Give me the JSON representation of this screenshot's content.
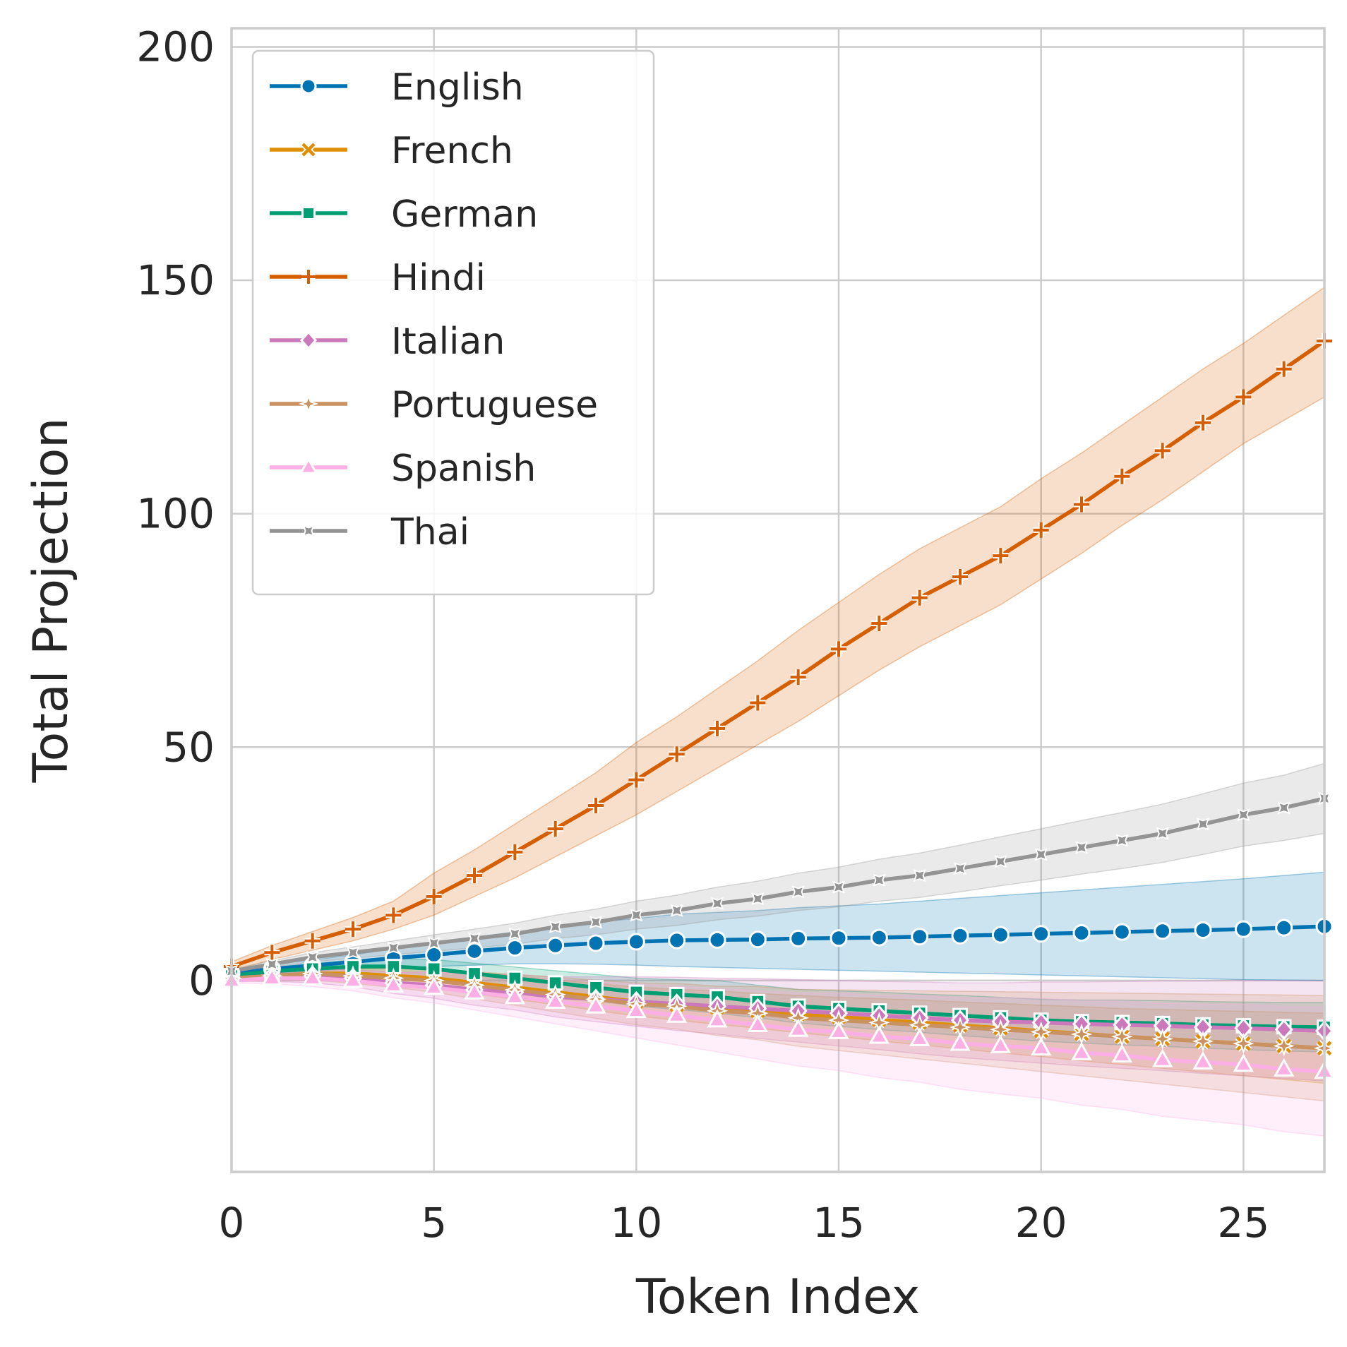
{
  "chart_data": {
    "type": "line",
    "title": "",
    "xlabel": "Token Index",
    "ylabel": "Total Projection",
    "xlim": [
      0,
      27
    ],
    "ylim": [
      -41,
      204
    ],
    "x_ticks": [
      0,
      5,
      10,
      15,
      20,
      25
    ],
    "y_ticks": [
      0,
      50,
      100,
      150,
      200
    ],
    "grid": true,
    "legend_position": "top-left",
    "band": "shaded confidence interval around each series",
    "x": [
      0,
      1,
      2,
      3,
      4,
      5,
      6,
      7,
      8,
      9,
      10,
      11,
      12,
      13,
      14,
      15,
      16,
      17,
      18,
      19,
      20,
      21,
      22,
      23,
      24,
      25,
      26,
      27
    ],
    "series": [
      {
        "name": "English",
        "color": "#0173b2",
        "marker": "circle",
        "values": [
          1.5,
          2.5,
          3.2,
          4,
          4.8,
          5.5,
          6.3,
          7,
          7.5,
          8,
          8.3,
          8.6,
          8.7,
          8.8,
          9,
          9.1,
          9.2,
          9.4,
          9.6,
          9.8,
          10,
          10.2,
          10.4,
          10.6,
          10.8,
          11,
          11.3,
          11.6
        ],
        "lower": [
          1.0,
          1.5,
          2.0,
          2.5,
          2.8,
          3.0,
          3.3,
          3.6,
          3.6,
          3.5,
          3.3,
          3.0,
          2.8,
          2.6,
          2.4,
          2.2,
          2.0,
          1.8,
          1.6,
          1.4,
          1.2,
          1.0,
          0.8,
          0.6,
          0.4,
          0.2,
          0.1,
          0.0
        ],
        "upper": [
          2.0,
          3.5,
          4.4,
          5.5,
          6.8,
          8.0,
          9.3,
          10.4,
          11.4,
          12.5,
          13.3,
          14.2,
          14.6,
          15.0,
          15.6,
          16.0,
          16.4,
          17.0,
          17.6,
          18.2,
          18.8,
          19.4,
          20.0,
          20.6,
          21.2,
          21.8,
          22.5,
          23.2
        ]
      },
      {
        "name": "French",
        "color": "#de8f05",
        "marker": "x",
        "values": [
          0.5,
          1,
          1.5,
          1.5,
          1,
          0.5,
          -0.5,
          -1.5,
          -2.5,
          -3.5,
          -4.5,
          -5.2,
          -5.8,
          -6.5,
          -7.2,
          -7.8,
          -8.4,
          -9,
          -9.6,
          -10.2,
          -10.8,
          -11.4,
          -12,
          -12.5,
          -13,
          -13.5,
          -14,
          -14.5
        ],
        "lower": [
          0.0,
          0.3,
          0.3,
          0.0,
          -0.8,
          -1.5,
          -2.8,
          -4.0,
          -5.2,
          -6.4,
          -7.6,
          -8.5,
          -9.4,
          -10.2,
          -11.2,
          -12.0,
          -12.9,
          -13.8,
          -14.6,
          -15.5,
          -16.3,
          -17.2,
          -18.0,
          -18.8,
          -19.6,
          -20.4,
          -21.2,
          -22.0
        ],
        "upper": [
          1.0,
          1.7,
          2.7,
          3.0,
          2.8,
          2.5,
          1.8,
          1.0,
          0.2,
          -0.6,
          -1.4,
          -1.9,
          -2.2,
          -2.8,
          -3.2,
          -3.6,
          -3.9,
          -4.2,
          -4.6,
          -4.9,
          -5.3,
          -5.6,
          -6.0,
          -6.2,
          -6.4,
          -6.6,
          -6.8,
          -7.0
        ]
      },
      {
        "name": "German",
        "color": "#029e73",
        "marker": "square",
        "values": [
          1,
          2,
          2.5,
          3,
          3,
          2.5,
          1.5,
          0.5,
          -0.5,
          -1.5,
          -2.5,
          -3,
          -3.5,
          -4.5,
          -5.5,
          -6,
          -6.5,
          -7,
          -7.5,
          -8,
          -8.5,
          -8.8,
          -9,
          -9.2,
          -9.5,
          -9.7,
          -9.9,
          -10
        ],
        "lower": [
          0.4,
          1.2,
          1.4,
          1.6,
          1.3,
          0.5,
          -0.7,
          -1.9,
          -3.1,
          -4.3,
          -5.5,
          -6.2,
          -7.0,
          -8.0,
          -9.1,
          -9.8,
          -10.5,
          -11.1,
          -11.8,
          -12.4,
          -13.0,
          -13.4,
          -13.8,
          -14.1,
          -14.5,
          -14.8,
          -15.1,
          -15.3
        ],
        "upper": [
          1.6,
          2.8,
          3.6,
          4.4,
          4.7,
          4.5,
          3.7,
          2.9,
          2.1,
          1.3,
          0.5,
          0.2,
          0.0,
          -1.0,
          -1.9,
          -2.2,
          -2.5,
          -2.9,
          -3.2,
          -3.6,
          -4.0,
          -4.2,
          -4.2,
          -4.3,
          -4.5,
          -4.6,
          -4.7,
          -4.7
        ]
      },
      {
        "name": "Hindi",
        "color": "#d55e00",
        "marker": "plus",
        "values": [
          3,
          6,
          8.5,
          11,
          14,
          18,
          22.5,
          27.5,
          32.5,
          37.5,
          43,
          48.5,
          54,
          59.5,
          65,
          71,
          76.5,
          82,
          86.5,
          91,
          96.5,
          102,
          108,
          113.5,
          119.5,
          125,
          131,
          137
        ],
        "lower": [
          2,
          4.5,
          6.5,
          8.5,
          11,
          14,
          18,
          22,
          26.5,
          31,
          35.5,
          40.5,
          45.5,
          50.5,
          55.5,
          61,
          66.5,
          71.5,
          76,
          80.5,
          86,
          91.5,
          97.5,
          103,
          109,
          115,
          120,
          125
        ],
        "upper": [
          4,
          7.5,
          10.5,
          13.5,
          17,
          23,
          28,
          33.5,
          39,
          44.5,
          51,
          56.5,
          62.5,
          68.5,
          75,
          81,
          87,
          92.5,
          97,
          101.5,
          107.5,
          113,
          119,
          125,
          131,
          136.5,
          142.5,
          148.5
        ]
      },
      {
        "name": "Italian",
        "color": "#cc78bc",
        "marker": "diamond",
        "values": [
          0.5,
          1,
          1,
          0.5,
          -0.5,
          -1,
          -2,
          -2.5,
          -3.5,
          -4,
          -4.5,
          -5,
          -5.5,
          -6,
          -6.5,
          -7,
          -7.5,
          -8,
          -8.5,
          -8.8,
          -9,
          -9.3,
          -9.5,
          -9.7,
          -10,
          -10.2,
          -10.5,
          -10.8
        ],
        "lower": [
          -0.2,
          -0.2,
          -0.5,
          -1.3,
          -2.8,
          -3.8,
          -5.3,
          -6.3,
          -7.8,
          -8.8,
          -9.8,
          -10.7,
          -11.5,
          -12.4,
          -13.2,
          -14.0,
          -14.8,
          -15.7,
          -16.5,
          -17.1,
          -17.7,
          -18.3,
          -18.8,
          -19.3,
          -19.9,
          -20.4,
          -21.0,
          -21.5
        ],
        "upper": [
          1.2,
          2.2,
          2.5,
          2.3,
          1.8,
          1.8,
          1.3,
          1.3,
          0.8,
          0.8,
          0.8,
          0.7,
          0.5,
          0.4,
          0.2,
          0.0,
          -0.2,
          -0.3,
          -0.5,
          -0.5,
          -0.3,
          -0.3,
          -0.2,
          -0.1,
          -0.1,
          0.0,
          0.0,
          -0.1
        ]
      },
      {
        "name": "Portuguese",
        "color": "#ca9161",
        "marker": "star",
        "values": [
          0.5,
          1,
          1.5,
          1,
          0.5,
          0,
          -1,
          -2,
          -3,
          -4,
          -5,
          -5.5,
          -6.5,
          -7,
          -8,
          -8.5,
          -9,
          -9.5,
          -10,
          -10.5,
          -11,
          -11.5,
          -12,
          -12.5,
          -13,
          -13.5,
          -14,
          -14.5
        ],
        "lower": [
          -0.1,
          0.0,
          0.1,
          -0.6,
          -1.5,
          -2.5,
          -3.9,
          -5.3,
          -6.7,
          -8.1,
          -9.5,
          -10.4,
          -11.8,
          -12.7,
          -14.1,
          -15.0,
          -15.9,
          -16.8,
          -17.7,
          -18.6,
          -19.5,
          -20.4,
          -21.3,
          -22.2,
          -23.1,
          -24.0,
          -24.9,
          -25.8
        ],
        "upper": [
          1.1,
          2.0,
          2.9,
          2.6,
          2.5,
          2.5,
          1.9,
          1.3,
          0.7,
          0.1,
          -0.5,
          -0.6,
          -1.2,
          -1.3,
          -1.9,
          -2.0,
          -2.1,
          -2.2,
          -2.3,
          -2.4,
          -2.5,
          -2.6,
          -2.7,
          -2.8,
          -2.9,
          -3.0,
          -3.1,
          -3.2
        ]
      },
      {
        "name": "Spanish",
        "color": "#fbafe4",
        "marker": "triangle",
        "values": [
          0,
          0.5,
          0.5,
          0,
          -1,
          -1.5,
          -2.5,
          -3.5,
          -4.5,
          -5.5,
          -6.5,
          -7.5,
          -8.5,
          -9.5,
          -10.5,
          -11,
          -12,
          -12.5,
          -13.5,
          -14,
          -14.5,
          -15.5,
          -16,
          -17,
          -17.5,
          -18,
          -19,
          -19.5
        ],
        "lower": [
          -0.5,
          -0.7,
          -1.3,
          -2.2,
          -3.7,
          -4.8,
          -6.3,
          -7.8,
          -9.3,
          -10.8,
          -12.3,
          -13.8,
          -15.3,
          -16.8,
          -18.3,
          -19.3,
          -20.8,
          -21.8,
          -23.3,
          -24.3,
          -25.2,
          -26.7,
          -27.6,
          -29.1,
          -30.0,
          -30.9,
          -32.4,
          -33.3
        ],
        "upper": [
          0.5,
          1.7,
          2.3,
          2.2,
          1.7,
          1.8,
          1.3,
          0.8,
          0.3,
          -0.2,
          -0.7,
          -1.2,
          -1.7,
          -2.2,
          -2.7,
          -2.7,
          -3.2,
          -3.2,
          -3.7,
          -3.7,
          -3.8,
          -4.3,
          -4.4,
          -4.9,
          -5.0,
          -5.1,
          -5.6,
          -5.7
        ]
      },
      {
        "name": "Thai",
        "color": "#949494",
        "marker": "tri",
        "values": [
          2,
          3.5,
          5,
          6,
          7,
          8,
          9,
          10,
          11.5,
          12.5,
          14,
          15,
          16.5,
          17.5,
          19,
          20,
          21.5,
          22.5,
          24,
          25.5,
          27,
          28.5,
          30,
          31.5,
          33.5,
          35.5,
          37,
          39
        ],
        "lower": [
          1.5,
          2.8,
          4.0,
          4.8,
          5.5,
          6.3,
          7.0,
          7.8,
          9.0,
          9.8,
          11.0,
          11.8,
          13.0,
          13.8,
          15.0,
          15.8,
          17.0,
          17.8,
          19.0,
          20.3,
          21.5,
          22.8,
          24.0,
          25.3,
          27.0,
          28.8,
          30.0,
          31.5
        ],
        "upper": [
          2.5,
          4.2,
          6.0,
          7.2,
          8.5,
          9.8,
          11.0,
          12.3,
          14.0,
          15.3,
          17.0,
          18.3,
          20.0,
          21.3,
          23.0,
          24.3,
          26.0,
          27.3,
          29.0,
          30.8,
          32.5,
          34.3,
          36.0,
          37.8,
          40.0,
          42.3,
          44.0,
          46.5
        ]
      }
    ]
  }
}
